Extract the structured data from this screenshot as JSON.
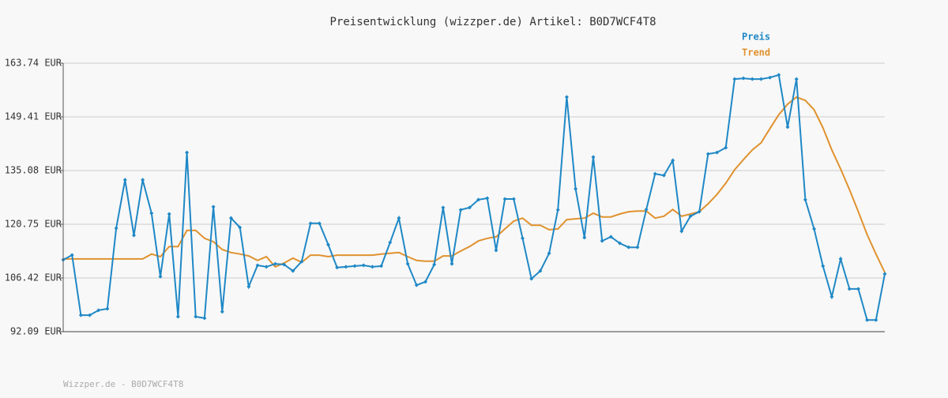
{
  "chart_data": {
    "type": "line",
    "title": "Preisentwicklung (wizzper.de) Artikel: B0D7WCF4T8",
    "footer": "Wizzper.de - B0D7WCF4T8",
    "ylim": [
      92.09,
      163.74
    ],
    "yticks": [
      {
        "value": 92.09,
        "label": "92.09 EUR"
      },
      {
        "value": 106.42,
        "label": "106.42 EUR"
      },
      {
        "value": 120.75,
        "label": "120.75 EUR"
      },
      {
        "value": 135.08,
        "label": "135.08 EUR"
      },
      {
        "value": 149.41,
        "label": "149.41 EUR"
      },
      {
        "value": 163.74,
        "label": "163.74 EUR"
      }
    ],
    "grid": true,
    "legend": "top-right",
    "series": [
      {
        "name": "Preis",
        "color": "#1f88c6",
        "markers": true,
        "values": [
          111.26,
          112.53,
          96.5,
          96.5,
          97.8,
          98.2,
          119.7,
          132.6,
          117.8,
          132.6,
          123.7,
          106.8,
          123.5,
          96.1,
          139.9,
          96.1,
          95.7,
          125.4,
          97.4,
          122.4,
          119.9,
          104.1,
          109.8,
          109.4,
          110.2,
          110.0,
          108.3,
          110.8,
          121.0,
          121.0,
          115.3,
          109.2,
          109.4,
          109.6,
          109.8,
          109.4,
          109.6,
          115.9,
          122.4,
          110.2,
          104.5,
          105.4,
          110.0,
          125.2,
          110.2,
          124.6,
          125.2,
          127.3,
          127.7,
          113.8,
          127.5,
          127.5,
          117.0,
          106.2,
          108.3,
          113.0,
          124.6,
          154.7,
          130.2,
          117.2,
          138.7,
          116.3,
          117.4,
          115.7,
          114.6,
          114.6,
          124.7,
          134.2,
          133.8,
          137.8,
          118.9,
          122.9,
          124.1,
          139.5,
          139.9,
          141.2,
          159.5,
          159.7,
          159.5,
          159.5,
          159.9,
          160.6,
          146.7,
          159.5,
          127.3,
          119.5,
          109.6,
          101.4,
          111.5,
          103.5,
          103.5,
          95.2,
          95.2,
          107.5
        ]
      },
      {
        "name": "Trend",
        "color": "#e0922f",
        "markers": false,
        "values": [
          111.5,
          111.5,
          111.5,
          111.5,
          111.5,
          111.5,
          111.5,
          111.5,
          111.5,
          111.5,
          112.8,
          112.1,
          114.8,
          114.8,
          119.1,
          119.1,
          117.0,
          116.1,
          114.0,
          113.2,
          112.8,
          112.3,
          111.1,
          112.1,
          109.4,
          110.4,
          111.7,
          110.6,
          112.5,
          112.5,
          112.1,
          112.5,
          112.5,
          112.5,
          112.5,
          112.5,
          112.8,
          113.0,
          113.2,
          112.1,
          111.1,
          110.9,
          110.9,
          112.3,
          112.3,
          113.6,
          114.8,
          116.3,
          117.0,
          117.4,
          119.5,
          121.6,
          122.4,
          120.5,
          120.5,
          119.3,
          119.5,
          122.0,
          122.2,
          122.4,
          123.7,
          122.7,
          122.7,
          123.5,
          124.1,
          124.3,
          124.3,
          122.4,
          122.9,
          124.7,
          122.9,
          123.5,
          124.1,
          126.2,
          128.7,
          131.7,
          135.3,
          138.0,
          140.6,
          142.5,
          146.3,
          150.0,
          152.8,
          154.7,
          153.8,
          151.3,
          146.5,
          140.6,
          135.5,
          130.0,
          124.1,
          118.0,
          112.8,
          107.9
        ]
      }
    ]
  }
}
